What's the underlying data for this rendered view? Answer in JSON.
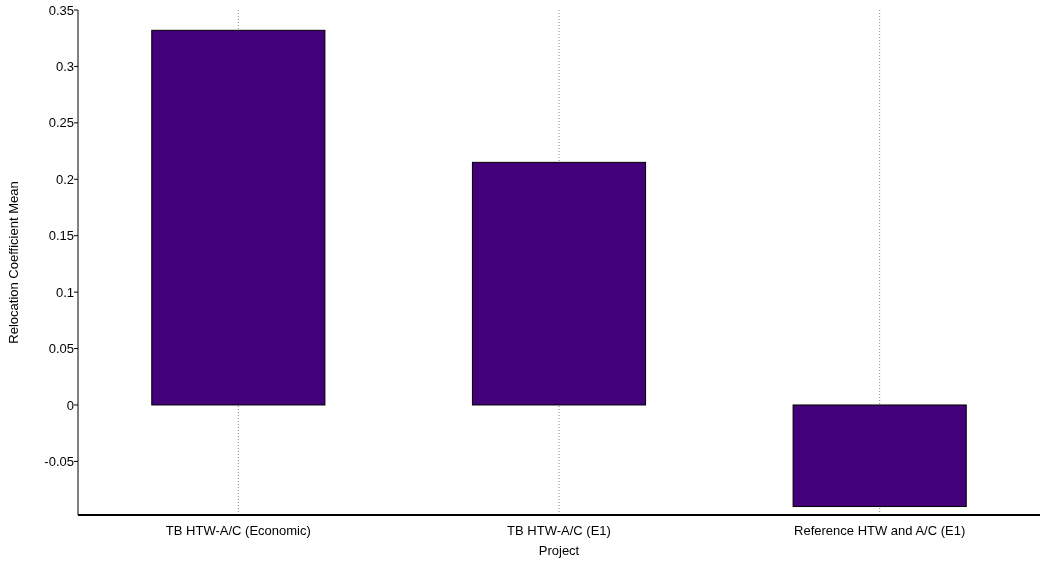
{
  "chart_data": {
    "type": "bar",
    "xlabel": "Project",
    "ylabel": "Relocation Coefficient  Mean",
    "categories": [
      "TB HTW-A/C (Economic)",
      "TB HTW-A/C (E1)",
      "Reference HTW and A/C (E1)"
    ],
    "values": [
      0.332,
      0.215,
      -0.09
    ],
    "color": "#420079",
    "ylim": [
      -0.0975,
      0.35
    ],
    "yticks": [
      -0.05,
      0,
      0.05,
      0.1,
      0.15,
      0.2,
      0.25,
      0.3,
      0.35
    ],
    "grid": "x"
  }
}
